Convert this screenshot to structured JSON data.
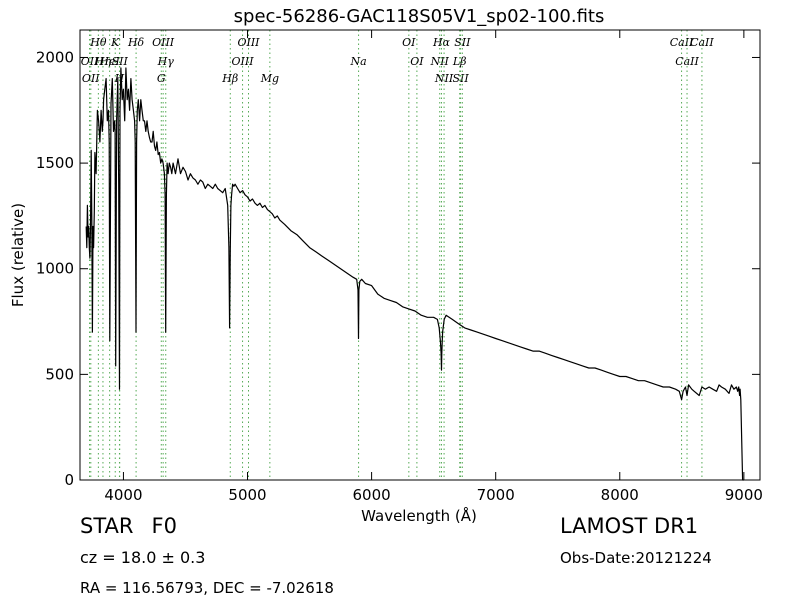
{
  "chart_data": {
    "type": "line",
    "title": "spec-56286-GAC118S05V1_sp02-100.fits",
    "xlabel": "Wavelength (Å)",
    "ylabel": "Flux (relative)",
    "xlim": [
      3650,
      9130
    ],
    "ylim": [
      0,
      2130
    ],
    "xticks": [
      4000,
      5000,
      6000,
      7000,
      8000,
      9000
    ],
    "xtick_labels": [
      "4000",
      "5000",
      "6000",
      "7000",
      "8000",
      "9000"
    ],
    "yticks": [
      0,
      500,
      1000,
      1500,
      2000
    ],
    "ytick_labels": [
      "0",
      "500",
      "1000",
      "1500",
      "2000"
    ],
    "grid": false,
    "series_color": "#000000",
    "line_marker_color": "#55aa55",
    "spectrum": {
      "x": [
        3700,
        3705,
        3710,
        3715,
        3720,
        3725,
        3730,
        3735,
        3740,
        3745,
        3750,
        3755,
        3760,
        3765,
        3770,
        3780,
        3790,
        3800,
        3810,
        3820,
        3830,
        3835,
        3840,
        3850,
        3860,
        3870,
        3880,
        3885,
        3890,
        3900,
        3910,
        3920,
        3930,
        3933,
        3938,
        3945,
        3955,
        3962,
        3968,
        3972,
        3980,
        3990,
        4000,
        4010,
        4020,
        4030,
        4040,
        4050,
        4060,
        4070,
        4080,
        4090,
        4095,
        4101,
        4106,
        4112,
        4120,
        4130,
        4140,
        4150,
        4160,
        4170,
        4180,
        4190,
        4200,
        4210,
        4220,
        4230,
        4240,
        4250,
        4260,
        4270,
        4280,
        4290,
        4300,
        4310,
        4320,
        4330,
        4336,
        4341,
        4346,
        4352,
        4360,
        4370,
        4380,
        4390,
        4400,
        4420,
        4440,
        4460,
        4480,
        4500,
        4520,
        4540,
        4560,
        4580,
        4600,
        4620,
        4640,
        4660,
        4680,
        4700,
        4720,
        4740,
        4760,
        4780,
        4800,
        4820,
        4840,
        4850,
        4856,
        4861,
        4866,
        4872,
        4880,
        4890,
        4900,
        4920,
        4940,
        4960,
        4980,
        5000,
        5020,
        5040,
        5060,
        5080,
        5100,
        5120,
        5140,
        5160,
        5180,
        5200,
        5220,
        5240,
        5260,
        5280,
        5300,
        5350,
        5400,
        5450,
        5500,
        5550,
        5600,
        5650,
        5700,
        5750,
        5800,
        5850,
        5880,
        5890,
        5894,
        5898,
        5905,
        5920,
        5950,
        6000,
        6050,
        6100,
        6150,
        6200,
        6250,
        6300,
        6350,
        6400,
        6450,
        6500,
        6530,
        6545,
        6555,
        6560,
        6563,
        6566,
        6572,
        6585,
        6600,
        6650,
        6700,
        6750,
        6800,
        6850,
        6900,
        6950,
        7000,
        7050,
        7100,
        7150,
        7200,
        7250,
        7300,
        7350,
        7400,
        7450,
        7500,
        7550,
        7600,
        7650,
        7700,
        7750,
        7800,
        7850,
        7900,
        7950,
        8000,
        8050,
        8100,
        8150,
        8200,
        8250,
        8300,
        8350,
        8400,
        8450,
        8480,
        8498,
        8510,
        8530,
        8542,
        8555,
        8580,
        8600,
        8640,
        8662,
        8690,
        8720,
        8750,
        8780,
        8800,
        8820,
        8850,
        8880,
        8900,
        8920,
        8940,
        8950,
        8958,
        8966,
        8970,
        8975,
        8990,
        9000
      ],
      "y": [
        1200,
        1100,
        1300,
        1150,
        1200,
        1100,
        1050,
        1200,
        1560,
        1250,
        700,
        1200,
        1100,
        1270,
        1550,
        1450,
        1750,
        1700,
        1600,
        1750,
        1650,
        1700,
        1800,
        1850,
        1900,
        1700,
        1750,
        1600,
        660,
        1780,
        1900,
        1650,
        1700,
        1650,
        540,
        1700,
        1900,
        1400,
        430,
        1750,
        1950,
        1800,
        1850,
        1700,
        1950,
        1800,
        1850,
        1750,
        1900,
        1800,
        1750,
        1700,
        1600,
        700,
        1600,
        1750,
        1800,
        1700,
        1800,
        1750,
        1700,
        1700,
        1650,
        1700,
        1650,
        1620,
        1600,
        1600,
        1650,
        1580,
        1560,
        1600,
        1540,
        1550,
        1500,
        1520,
        1500,
        1450,
        1350,
        700,
        1350,
        1500,
        1450,
        1500,
        1480,
        1450,
        1500,
        1450,
        1520,
        1450,
        1480,
        1460,
        1420,
        1450,
        1430,
        1420,
        1400,
        1420,
        1410,
        1380,
        1400,
        1390,
        1380,
        1400,
        1380,
        1370,
        1360,
        1380,
        1300,
        1100,
        720,
        1100,
        1300,
        1350,
        1400,
        1390,
        1400,
        1380,
        1360,
        1370,
        1350,
        1340,
        1320,
        1330,
        1310,
        1300,
        1310,
        1290,
        1300,
        1280,
        1270,
        1260,
        1240,
        1250,
        1230,
        1220,
        1210,
        1180,
        1160,
        1130,
        1100,
        1080,
        1060,
        1040,
        1020,
        1000,
        980,
        960,
        950,
        900,
        670,
        900,
        940,
        950,
        930,
        920,
        880,
        860,
        850,
        840,
        820,
        810,
        800,
        780,
        770,
        770,
        760,
        720,
        650,
        600,
        520,
        600,
        700,
        760,
        780,
        760,
        740,
        720,
        710,
        700,
        690,
        680,
        670,
        660,
        650,
        640,
        630,
        620,
        610,
        610,
        600,
        590,
        580,
        570,
        560,
        550,
        540,
        530,
        530,
        520,
        510,
        500,
        490,
        490,
        480,
        470,
        470,
        460,
        450,
        440,
        440,
        430,
        420,
        380,
        420,
        440,
        400,
        450,
        430,
        420,
        400,
        440,
        430,
        440,
        430,
        420,
        450,
        440,
        430,
        410,
        450,
        430,
        440,
        420,
        440,
        400,
        430,
        380,
        0,
        0
      ]
    },
    "lines": [
      {
        "name": "OII",
        "wl": 3727
      },
      {
        "name": "OII",
        "wl": 3737
      },
      {
        "name": "Hθ",
        "wl": 3798
      },
      {
        "name": "Hη",
        "wl": 3835
      },
      {
        "name": "HeI",
        "wl": 3889
      },
      {
        "name": "K",
        "wl": 3934
      },
      {
        "name": "SII",
        "wl": 3970
      },
      {
        "name": "H",
        "wl": 3968
      },
      {
        "name": "Hδ",
        "wl": 4102
      },
      {
        "name": "OIII",
        "wl": 4320
      },
      {
        "name": "Hγ",
        "wl": 4341
      },
      {
        "name": "G",
        "wl": 4305
      },
      {
        "name": "Hβ",
        "wl": 4861
      },
      {
        "name": "OIII",
        "wl": 4960
      },
      {
        "name": "OIII",
        "wl": 5008
      },
      {
        "name": "Mg",
        "wl": 5180
      },
      {
        "name": "Na",
        "wl": 5895
      },
      {
        "name": "OI",
        "wl": 6300
      },
      {
        "name": "OI",
        "wl": 6365
      },
      {
        "name": "NII",
        "wl": 6549
      },
      {
        "name": "Hα",
        "wl": 6563
      },
      {
        "name": "NII",
        "wl": 6584
      },
      {
        "name": "SII",
        "wl": 6717
      },
      {
        "name": "SII",
        "wl": 6731
      },
      {
        "name": "Lβ",
        "wl": 6710
      },
      {
        "name": "CaII",
        "wl": 8498
      },
      {
        "name": "CaII",
        "wl": 8542
      },
      {
        "name": "CaII",
        "wl": 8662
      }
    ]
  },
  "info": {
    "object_class": "STAR",
    "subclass": "F0",
    "redshift": "cz = 18.0  ± 0.3",
    "coords": "RA = 116.56793, DEC = -7.02618",
    "survey": "LAMOST DR1",
    "obs_date": "Obs-Date:20121224"
  }
}
